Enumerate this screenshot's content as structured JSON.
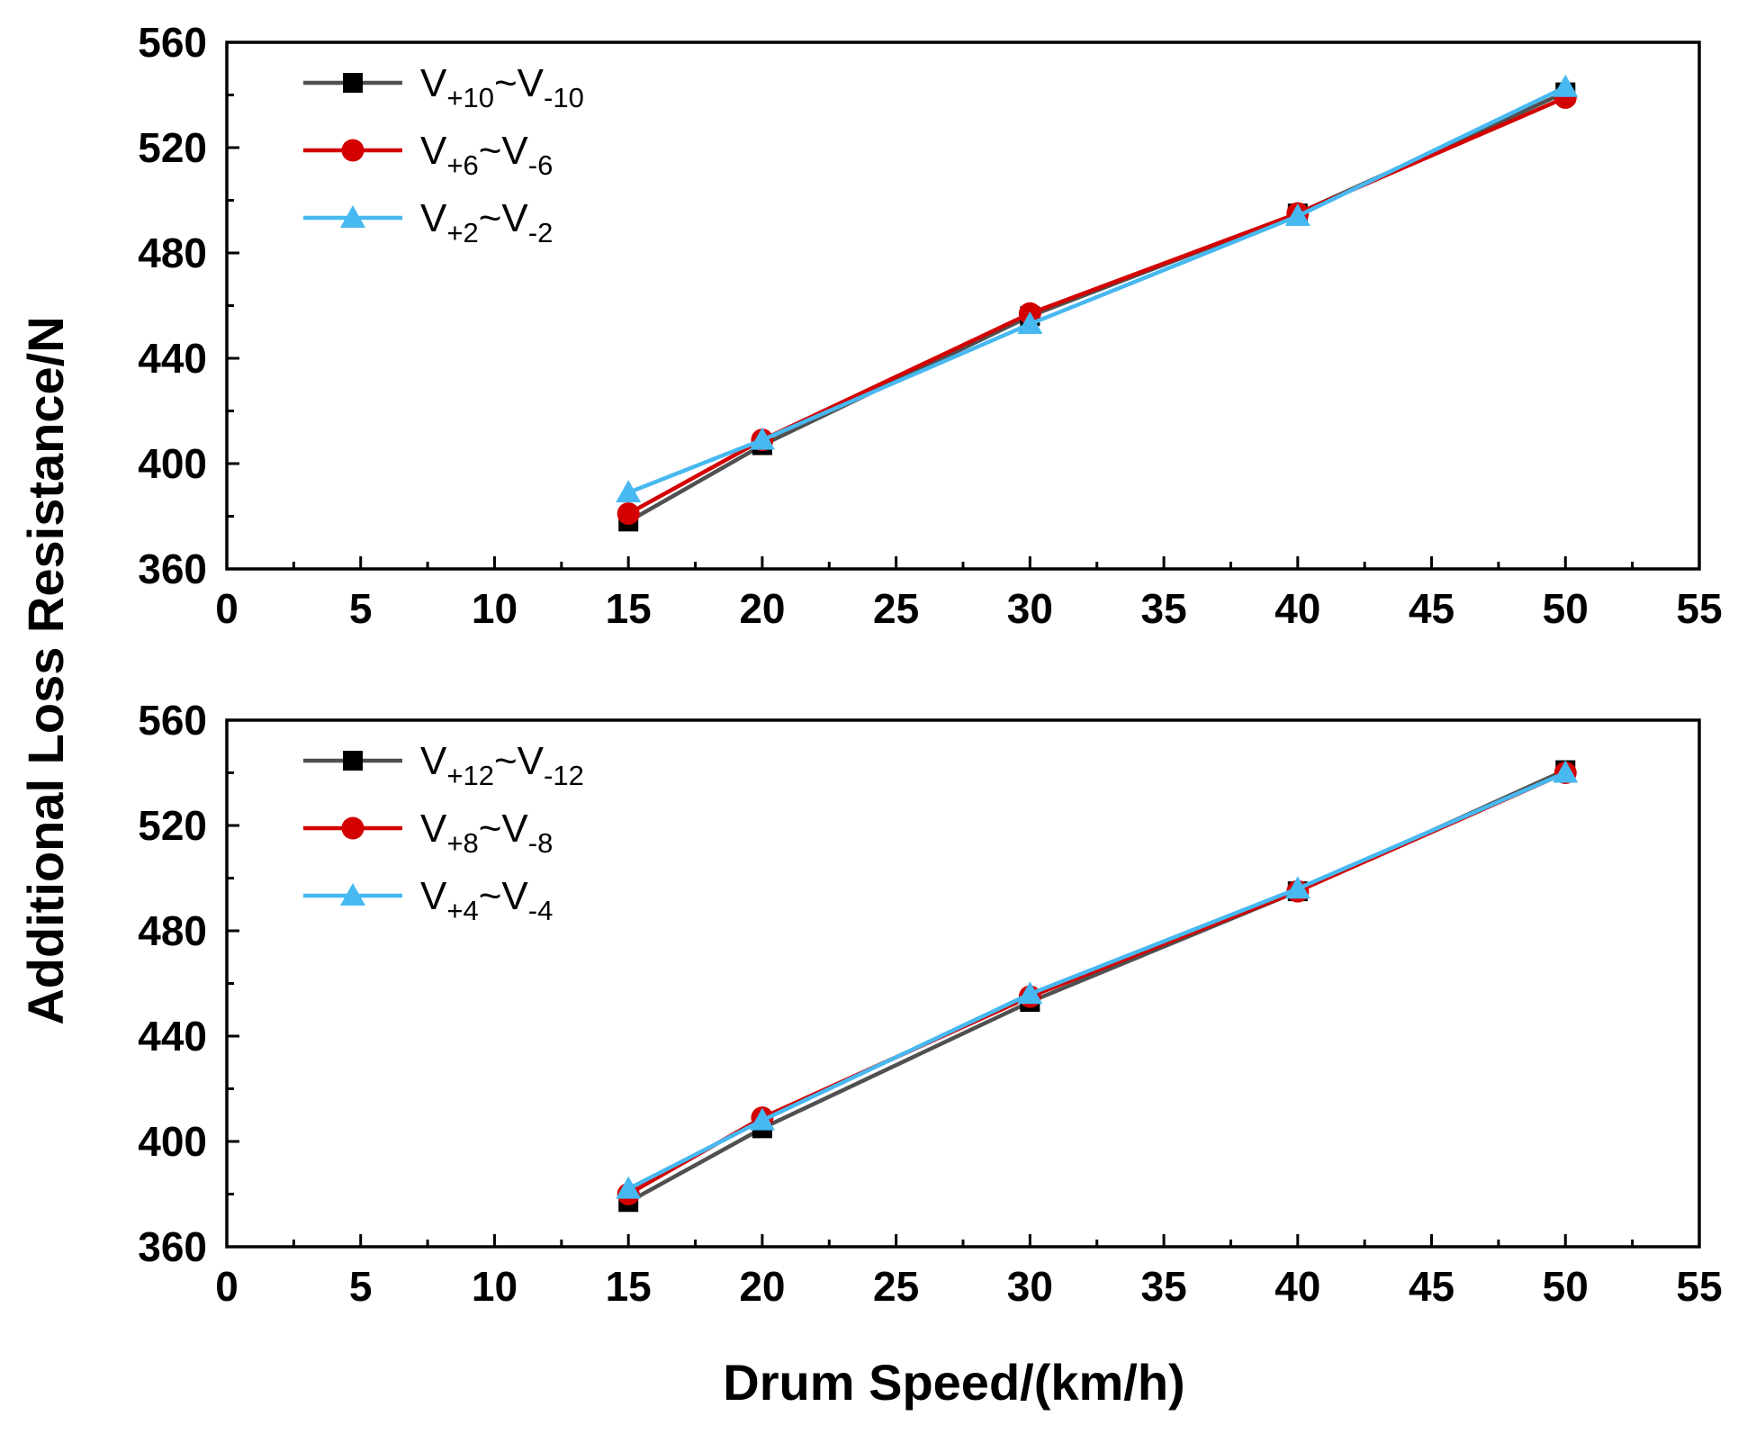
{
  "figure": {
    "ylabel": "Additional Loss Resistance/N",
    "xlabel": "Drum Speed/(km/h)"
  },
  "chart_data": [
    {
      "type": "line",
      "title": "",
      "xlabel": "Drum Speed/(km/h)",
      "ylabel": "Additional Loss Resistance/N",
      "xlim": [
        0,
        55
      ],
      "ylim": [
        360,
        560
      ],
      "xticks": [
        0,
        5,
        10,
        15,
        20,
        25,
        30,
        35,
        40,
        45,
        50,
        55
      ],
      "yticks": [
        360,
        400,
        440,
        480,
        520,
        560
      ],
      "legend_position": "top-left",
      "x": [
        15,
        20,
        30,
        40,
        50
      ],
      "series": [
        {
          "name": "V+10~V-10",
          "label_base": "V",
          "label_sup1": "+10",
          "label_tilde": "~V",
          "label_sup2": "-10",
          "color": "#505050",
          "marker": "square",
          "values": [
            378,
            407,
            456,
            495,
            541
          ]
        },
        {
          "name": "V+6~V-6",
          "label_base": "V",
          "label_sup1": "+6",
          "label_tilde": "~V",
          "label_sup2": "-6",
          "color": "#d40000",
          "marker": "circle",
          "values": [
            381,
            409,
            457,
            495,
            539
          ]
        },
        {
          "name": "V+2~V-2",
          "label_base": "V",
          "label_sup1": "+2",
          "label_tilde": "~V",
          "label_sup2": "-2",
          "color": "#47b8f0",
          "marker": "triangle",
          "values": [
            389,
            409,
            453,
            494,
            543
          ]
        }
      ]
    },
    {
      "type": "line",
      "title": "",
      "xlabel": "Drum Speed/(km/h)",
      "ylabel": "Additional Loss Resistance/N",
      "xlim": [
        0,
        55
      ],
      "ylim": [
        360,
        560
      ],
      "xticks": [
        0,
        5,
        10,
        15,
        20,
        25,
        30,
        35,
        40,
        45,
        50,
        55
      ],
      "yticks": [
        360,
        400,
        440,
        480,
        520,
        560
      ],
      "legend_position": "top-left",
      "x": [
        15,
        20,
        30,
        40,
        50
      ],
      "series": [
        {
          "name": "V+12~V-12",
          "label_base": "V",
          "label_sup1": "+12",
          "label_tilde": "~V",
          "label_sup2": "-12",
          "color": "#505050",
          "marker": "square",
          "values": [
            377,
            405,
            453,
            495,
            541
          ]
        },
        {
          "name": "V+8~V-8",
          "label_base": "V",
          "label_sup1": "+8",
          "label_tilde": "~V",
          "label_sup2": "-8",
          "color": "#d40000",
          "marker": "circle",
          "values": [
            380,
            409,
            455,
            495,
            540
          ]
        },
        {
          "name": "V+4~V-4",
          "label_base": "V",
          "label_sup1": "+4",
          "label_tilde": "~V",
          "label_sup2": "-4",
          "color": "#47b8f0",
          "marker": "triangle",
          "values": [
            382,
            408,
            456,
            496,
            540
          ]
        }
      ]
    }
  ]
}
